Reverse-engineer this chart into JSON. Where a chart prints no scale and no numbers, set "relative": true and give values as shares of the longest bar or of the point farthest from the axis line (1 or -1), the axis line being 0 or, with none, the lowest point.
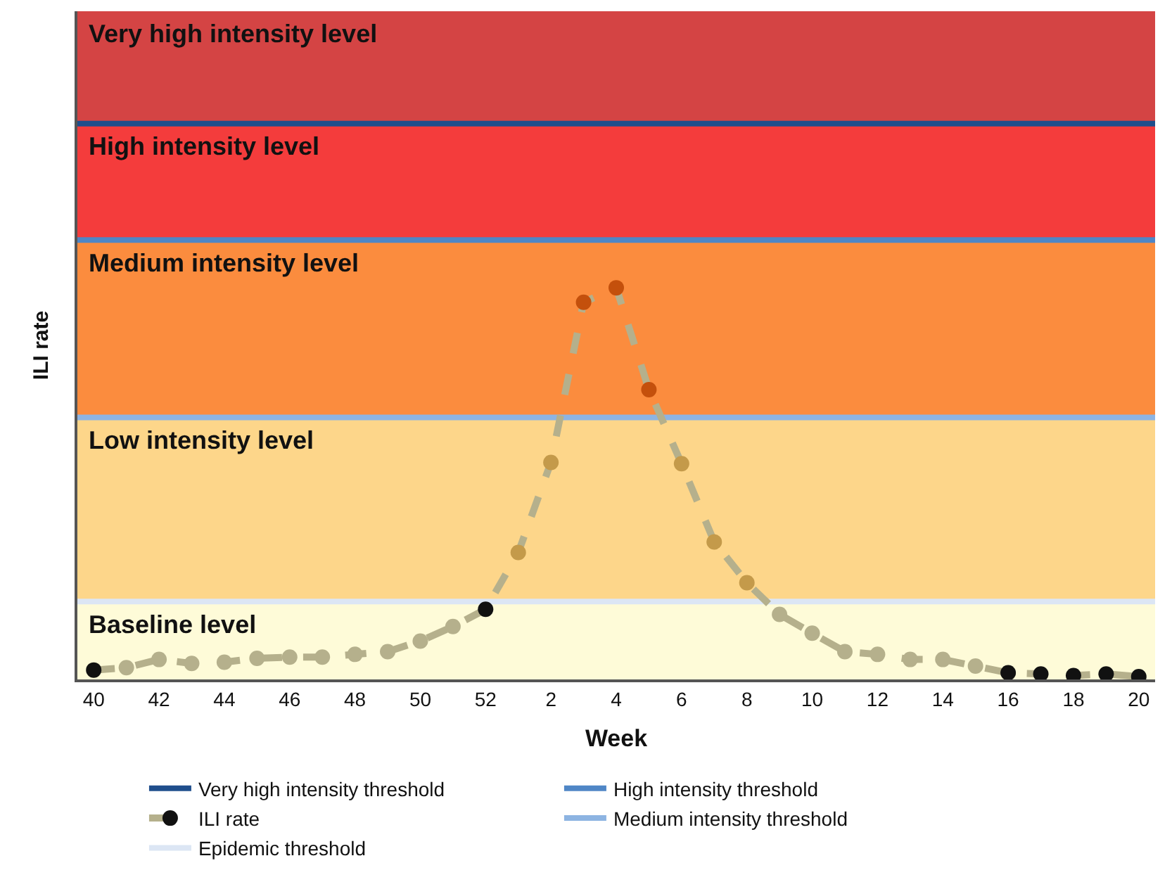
{
  "chart_data": {
    "type": "line",
    "relative": true,
    "xlabel": "Week",
    "ylabel": "ILI rate",
    "categories": [
      "40",
      null,
      "42",
      null,
      "44",
      null,
      "46",
      null,
      "48",
      null,
      "50",
      null,
      "52",
      null,
      "2",
      null,
      "4",
      null,
      "6",
      null,
      "8",
      null,
      "10",
      null,
      "12",
      null,
      "14",
      null,
      "16",
      null,
      "18",
      null,
      "20"
    ],
    "series": [
      {
        "name": "ILI rate",
        "color": "#b5b08c",
        "line_style": "dashed",
        "marker": "circle",
        "values": [
          0.024,
          0.03,
          0.051,
          0.041,
          0.044,
          0.054,
          0.057,
          0.057,
          0.064,
          0.071,
          0.098,
          0.135,
          0.179,
          0.324,
          0.554,
          0.963,
          1.0,
          0.74,
          0.551,
          0.351,
          0.247,
          0.166,
          0.118,
          0.071,
          0.064,
          0.051,
          0.051,
          0.034,
          0.017,
          0.014,
          0.01,
          0.014,
          0.007
        ],
        "colors": [
          "#111111",
          "#b5b08c",
          "#b5b08c",
          "#b5b08c",
          "#b5b08c",
          "#b5b08c",
          "#b5b08c",
          "#b5b08c",
          "#b5b08c",
          "#b5b08c",
          "#b5b08c",
          "#b5b08c",
          "#111111",
          "#c49a4a",
          "#c49a4a",
          "#c4500c",
          "#c4500c",
          "#c4500c",
          "#c49a4a",
          "#c49a4a",
          "#c49a4a",
          "#b5b08c",
          "#b5b08c",
          "#b5b08c",
          "#b5b08c",
          "#b5b08c",
          "#b5b08c",
          "#b5b08c",
          "#111111",
          "#111111",
          "#111111",
          "#111111",
          "#111111"
        ]
      }
    ],
    "bands": [
      {
        "axis": "y",
        "from": 0,
        "to": 0.199,
        "label": "Baseline level",
        "color": "#fefbd8"
      },
      {
        "axis": "y",
        "from": 0.199,
        "to": 0.669,
        "label": "Low intensity level",
        "color": "#fdd68a"
      },
      {
        "axis": "y",
        "from": 0.669,
        "to": 1.122,
        "label": "Medium intensity level",
        "color": "#fb8c3e"
      },
      {
        "axis": "y",
        "from": 1.122,
        "to": 1.419,
        "label": "High intensity level",
        "color": "#f43c3c"
      },
      {
        "axis": "y",
        "from": 1.419,
        "to": 1.706,
        "label": "Very high intensity level",
        "color": "#d44444"
      }
    ],
    "ref_lines": [
      {
        "axis": "y",
        "value": 1.419,
        "label": "Very high intensity threshold",
        "color": "#1f4e8c"
      },
      {
        "axis": "y",
        "value": 1.122,
        "label": "High intensity threshold",
        "color": "#4f86c6"
      },
      {
        "axis": "y",
        "value": 0.669,
        "label": "Medium intensity threshold",
        "color": "#8db4e2"
      },
      {
        "axis": "y",
        "value": 0.199,
        "label": "Epidemic threshold",
        "color": "#dce6f4"
      }
    ],
    "grid": false,
    "legend": "bottom"
  }
}
